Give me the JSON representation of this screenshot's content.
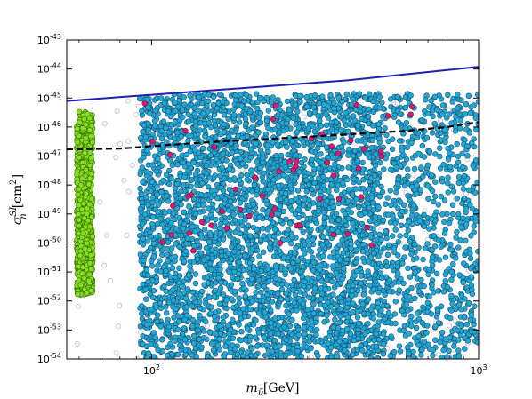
{
  "chart_data": {
    "type": "scatter",
    "xlabel": {
      "base": "m",
      "sub": "ν̃",
      "unit": "[GeV]"
    },
    "ylabel": {
      "base": "σ",
      "sub": "n",
      "sup": "SI",
      "unit": "[cm",
      "unit_sup": "2",
      "unit_close": "]"
    },
    "x_scale": "log",
    "y_scale": "log",
    "xlim": [
      55,
      1000
    ],
    "ylim": [
      1e-54,
      1e-43
    ],
    "x_ticks": [
      {
        "value": 100,
        "base": "10",
        "exp": "2"
      },
      {
        "value": 1000,
        "base": "10",
        "exp": "3"
      }
    ],
    "y_ticks": [
      {
        "value": 1e-54,
        "base": "10",
        "exp": "-54"
      },
      {
        "value": 1e-53,
        "base": "10",
        "exp": "-53"
      },
      {
        "value": 1e-52,
        "base": "10",
        "exp": "-52"
      },
      {
        "value": 1e-51,
        "base": "10",
        "exp": "-51"
      },
      {
        "value": 1e-50,
        "base": "10",
        "exp": "-50"
      },
      {
        "value": 1e-49,
        "base": "10",
        "exp": "-49"
      },
      {
        "value": 1e-48,
        "base": "10",
        "exp": "-48"
      },
      {
        "value": 1e-47,
        "base": "10",
        "exp": "-47"
      },
      {
        "value": 1e-46,
        "base": "10",
        "exp": "-46"
      },
      {
        "value": 1e-45,
        "base": "10",
        "exp": "-45"
      },
      {
        "value": 1e-44,
        "base": "10",
        "exp": "-44"
      },
      {
        "value": 1e-43,
        "base": "10",
        "exp": "-43"
      }
    ],
    "grid": false,
    "legend": "none",
    "lines": [
      {
        "style": "solid",
        "color": "#1f1fb4",
        "x": [
          55,
          100,
          200,
          400,
          1000
        ],
        "y": [
          7.9e-46,
          1.3e-45,
          2.3e-45,
          4.1e-45,
          1.2e-44
        ]
      },
      {
        "style": "dashed",
        "color": "#000000",
        "x": [
          55,
          80,
          100,
          150,
          200,
          300,
          400,
          600,
          800,
          1000
        ],
        "y": [
          1.7e-47,
          1.8e-47,
          2.2e-47,
          3e-47,
          3.6e-47,
          4.6e-47,
          5.6e-47,
          7.4e-47,
          1e-46,
          1.5e-46
        ]
      }
    ],
    "series": [
      {
        "color": "#1fa8d8",
        "edge": "#1a4f66",
        "x_range": [
          92,
          1000
        ],
        "log10y_range": [
          -54,
          -44.85
        ],
        "count": 5200,
        "marker": "filled-circle"
      },
      {
        "color": "#84e01c",
        "edge": "#3d6a0a",
        "x_range": [
          59,
          66
        ],
        "log10y_range": [
          -51.8,
          -45.4
        ],
        "count": 900,
        "marker": "filled-circle"
      },
      {
        "color": "#d81b74",
        "edge": "#70103d",
        "x_range": [
          88,
          800
        ],
        "log10y_range": [
          -50.5,
          -45.05
        ],
        "count": 55,
        "marker": "filled-circle"
      },
      {
        "color": "none",
        "edge": "#b5b5b5",
        "x_range": [
          55,
          1000
        ],
        "log10y_range": [
          -54,
          -45
        ],
        "count": 160,
        "marker": "open-circle"
      }
    ]
  }
}
